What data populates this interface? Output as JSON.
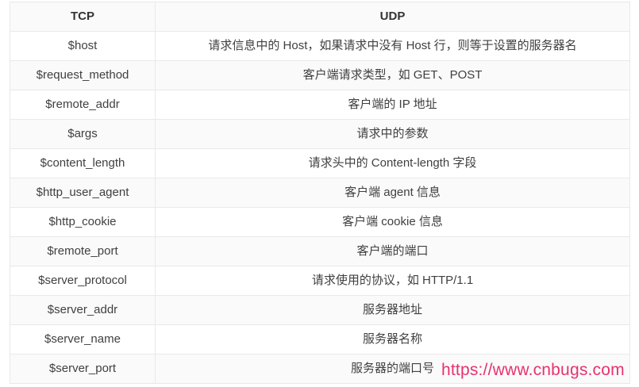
{
  "table": {
    "headers": [
      {
        "label": "TCP"
      },
      {
        "label": "UDP"
      }
    ],
    "rows": [
      {
        "variable": "$host",
        "description": "请求信息中的 Host，如果请求中没有 Host 行，则等于设置的服务器名"
      },
      {
        "variable": "$request_method",
        "description": "客户端请求类型，如 GET、POST"
      },
      {
        "variable": "$remote_addr",
        "description": "客户端的 IP 地址"
      },
      {
        "variable": "$args",
        "description": "请求中的参数"
      },
      {
        "variable": "$content_length",
        "description": "请求头中的 Content-length 字段"
      },
      {
        "variable": "$http_user_agent",
        "description": "客户端 agent 信息"
      },
      {
        "variable": "$http_cookie",
        "description": "客户端 cookie 信息"
      },
      {
        "variable": "$remote_port",
        "description": "客户端的端口"
      },
      {
        "variable": "$server_protocol",
        "description": "请求使用的协议，如 HTTP/1.1"
      },
      {
        "variable": "$server_addr",
        "description": "服务器地址"
      },
      {
        "variable": "$server_name",
        "description": "服务器名称"
      },
      {
        "variable": "$server_port",
        "description": "服务器的端口号"
      }
    ]
  },
  "watermark": {
    "text": "https://www.cnbugs.com"
  },
  "colors": {
    "page_bg": "#ffffff",
    "stripe_bg": "#fafafa",
    "border": "#e9e9e9",
    "text": "#404040",
    "header_text": "#333333",
    "watermark": "#e8326e"
  }
}
